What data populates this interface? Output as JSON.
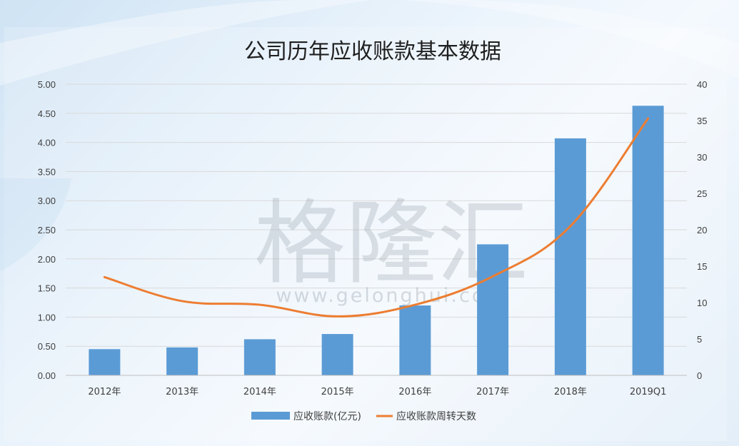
{
  "chart_data": {
    "type": "bar",
    "title": "公司历年应收账款基本数据",
    "categories": [
      "2012年",
      "2013年",
      "2014年",
      "2015年",
      "2016年",
      "2017年",
      "2018年",
      "2019Q1"
    ],
    "series": [
      {
        "name": "应收账款(亿元)",
        "type": "bar",
        "axis": "left",
        "color": "#5b9bd5",
        "values": [
          0.45,
          0.48,
          0.62,
          0.71,
          1.2,
          2.25,
          4.07,
          4.63
        ]
      },
      {
        "name": "应收账款周转天数",
        "type": "line",
        "axis": "right",
        "color": "#ed7d31",
        "values": [
          13.5,
          10.2,
          9.7,
          8.1,
          9.7,
          13.6,
          20.5,
          35.3
        ]
      }
    ],
    "y_left": {
      "min": 0,
      "max": 5,
      "ticks": [
        "0.00",
        "0.50",
        "1.00",
        "1.50",
        "2.00",
        "2.50",
        "3.00",
        "3.50",
        "4.00",
        "4.50",
        "5.00"
      ]
    },
    "y_right": {
      "min": 0,
      "max": 40,
      "ticks": [
        "0",
        "5",
        "10",
        "15",
        "20",
        "25",
        "30",
        "35",
        "40"
      ]
    },
    "grid": true,
    "legend_position": "bottom"
  },
  "watermark": {
    "text": "格隆汇",
    "url": "www.gelonghui.com"
  }
}
